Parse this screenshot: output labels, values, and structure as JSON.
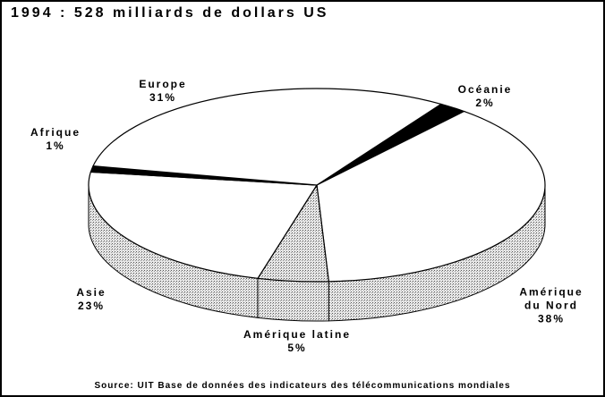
{
  "chart_data": {
    "type": "pie",
    "title": "1994 : 528 milliards de dollars US",
    "categories": [
      "Océanie",
      "Amérique du Nord",
      "Amérique latine",
      "Asie",
      "Afrique",
      "Europe"
    ],
    "values": [
      2,
      38,
      5,
      23,
      1,
      31
    ],
    "value_labels": [
      "2%",
      "38%",
      "5%",
      "23%",
      "1%",
      "31%"
    ],
    "colors": [
      "#000000",
      "#ffffff",
      "#b4b4b4",
      "#ffffff",
      "#000000",
      "#ffffff"
    ],
    "source": "Source: UIT Base de données des indicateurs des télécommunications mondiales"
  }
}
